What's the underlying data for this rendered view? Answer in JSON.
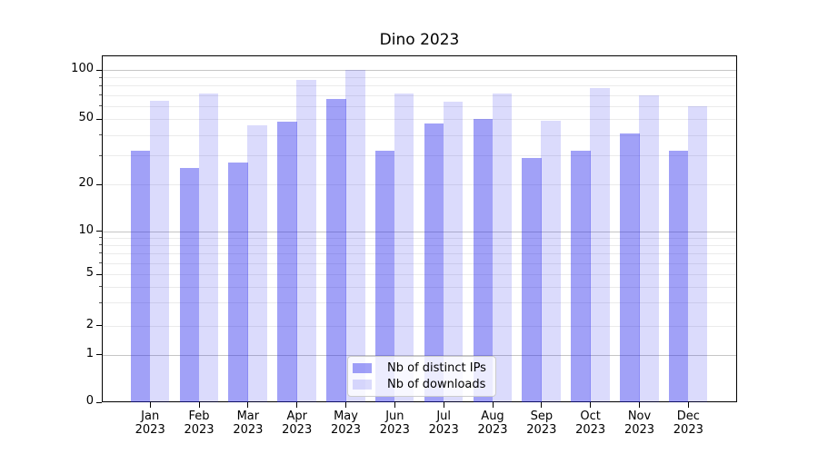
{
  "chart_data": {
    "type": "bar",
    "title": "Dino 2023",
    "y_scale": "symlog",
    "y_ticks": [
      0,
      1,
      2,
      5,
      10,
      20,
      50,
      100
    ],
    "y_minor_ticks": [
      2,
      3,
      4,
      5,
      6,
      7,
      8,
      9,
      20,
      30,
      40,
      50,
      60,
      70,
      80,
      90
    ],
    "ylim": [
      0,
      115
    ],
    "grid": "on",
    "legend_position": "lower center",
    "x_tick_labels": [
      {
        "month": "Jan",
        "year": "2023"
      },
      {
        "month": "Feb",
        "year": "2023"
      },
      {
        "month": "Mar",
        "year": "2023"
      },
      {
        "month": "Apr",
        "year": "2023"
      },
      {
        "month": "May",
        "year": "2023"
      },
      {
        "month": "Jun",
        "year": "2023"
      },
      {
        "month": "Jul",
        "year": "2023"
      },
      {
        "month": "Aug",
        "year": "2023"
      },
      {
        "month": "Sep",
        "year": "2023"
      },
      {
        "month": "Oct",
        "year": "2023"
      },
      {
        "month": "Nov",
        "year": "2023"
      },
      {
        "month": "Dec",
        "year": "2023"
      }
    ],
    "series": [
      {
        "name": "Nb of distinct IPs",
        "color": "rgba(30,30,235,0.42)",
        "values": [
          32,
          25,
          27,
          48,
          66,
          32,
          47,
          50,
          29,
          32,
          41,
          32
        ]
      },
      {
        "name": "Nb of downloads",
        "color": "rgba(30,30,235,0.16)",
        "values": [
          65,
          72,
          46,
          87,
          100,
          72,
          64,
          72,
          49,
          77,
          70,
          60
        ]
      }
    ],
    "colors": {
      "grid_major": "#c6c6c6",
      "grid_minor": "#ebebeb",
      "spine": "#000000",
      "text": "#000000",
      "background": "#ffffff"
    }
  }
}
